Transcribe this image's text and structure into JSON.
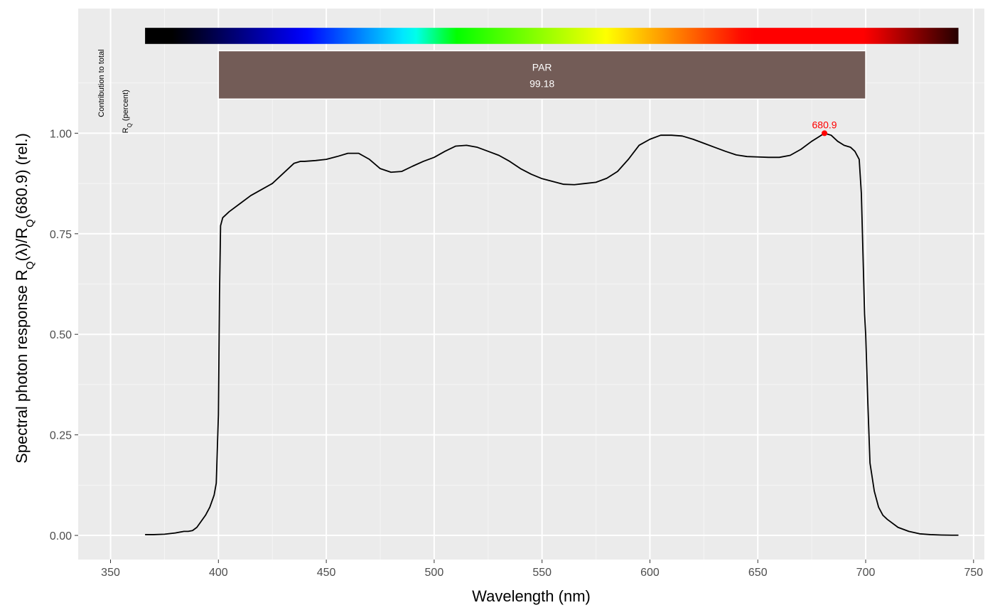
{
  "chart_data": {
    "type": "line",
    "xlabel": "Wavelength (nm)",
    "ylabel": {
      "prefix": "Spectral  photon  response  R",
      "sub1": "Q",
      "mid": "(λ)/R",
      "sub2": "Q",
      "suffix": "(680.9)  (rel.)"
    },
    "xlim": [
      335,
      755
    ],
    "ylim": [
      -0.06,
      1.31
    ],
    "x_ticks": [
      350,
      400,
      450,
      500,
      550,
      600,
      650,
      700,
      750
    ],
    "x_tick_labels": [
      "350",
      "400",
      "450",
      "500",
      "550",
      "600",
      "650",
      "700",
      "750"
    ],
    "y_ticks": [
      0,
      0.25,
      0.5,
      0.75,
      1.0
    ],
    "y_tick_labels": [
      "0.00",
      "0.25",
      "0.50",
      "0.75",
      "1.00"
    ],
    "grid": true,
    "series": [
      {
        "color": "#000000",
        "x": [
          366,
          370,
          375,
          380,
          384,
          386,
          388,
          390,
          392,
          394,
          396,
          398,
          399,
          400,
          400.5,
          401,
          402,
          405,
          410,
          415,
          420,
          425,
          430,
          435,
          438,
          440,
          445,
          450,
          455,
          460,
          465,
          470,
          475,
          480,
          485,
          490,
          495,
          500,
          505,
          510,
          515,
          520,
          525,
          530,
          535,
          540,
          545,
          550,
          555,
          560,
          565,
          570,
          575,
          580,
          585,
          590,
          595,
          600,
          605,
          610,
          615,
          620,
          625,
          630,
          635,
          640,
          645,
          650,
          655,
          660,
          665,
          670,
          675,
          678,
          680.9,
          684,
          687,
          690,
          693,
          695,
          697,
          698,
          699,
          699.5,
          700,
          701,
          702,
          704,
          706,
          708,
          710,
          715,
          720,
          725,
          730,
          735,
          740,
          743
        ],
        "y": [
          0.002,
          0.002,
          0.003,
          0.006,
          0.01,
          0.01,
          0.012,
          0.02,
          0.035,
          0.05,
          0.07,
          0.1,
          0.13,
          0.3,
          0.6,
          0.77,
          0.79,
          0.805,
          0.825,
          0.845,
          0.86,
          0.875,
          0.9,
          0.925,
          0.93,
          0.93,
          0.932,
          0.935,
          0.942,
          0.95,
          0.95,
          0.935,
          0.912,
          0.903,
          0.905,
          0.918,
          0.93,
          0.94,
          0.955,
          0.968,
          0.97,
          0.965,
          0.955,
          0.945,
          0.93,
          0.912,
          0.898,
          0.887,
          0.88,
          0.873,
          0.872,
          0.875,
          0.878,
          0.888,
          0.905,
          0.935,
          0.97,
          0.985,
          0.995,
          0.995,
          0.993,
          0.985,
          0.975,
          0.965,
          0.955,
          0.946,
          0.942,
          0.941,
          0.94,
          0.94,
          0.945,
          0.96,
          0.98,
          0.99,
          1.0,
          0.995,
          0.98,
          0.97,
          0.965,
          0.955,
          0.935,
          0.85,
          0.65,
          0.55,
          0.5,
          0.33,
          0.18,
          0.11,
          0.07,
          0.05,
          0.04,
          0.02,
          0.01,
          0.004,
          0.002,
          0.001,
          0.0005,
          0.0005
        ]
      }
    ],
    "peak": {
      "x": 680.9,
      "y": 1.0,
      "label": "680.9",
      "color": "#ff0000"
    },
    "wavelength_bar": {
      "x_start": 366,
      "x_end": 743,
      "y_bottom": 1.222,
      "y_top": 1.262
    },
    "band": {
      "x_start": 400,
      "x_end": 700,
      "y_bottom": 1.085,
      "y_top": 1.205,
      "name": "PAR",
      "value": "99.18",
      "color": "#735c57"
    },
    "side_label": {
      "line1": "Contribution  to  total",
      "line2_main": "R",
      "line2_sub": "Q",
      "line2_rest": "  (percent)"
    }
  }
}
